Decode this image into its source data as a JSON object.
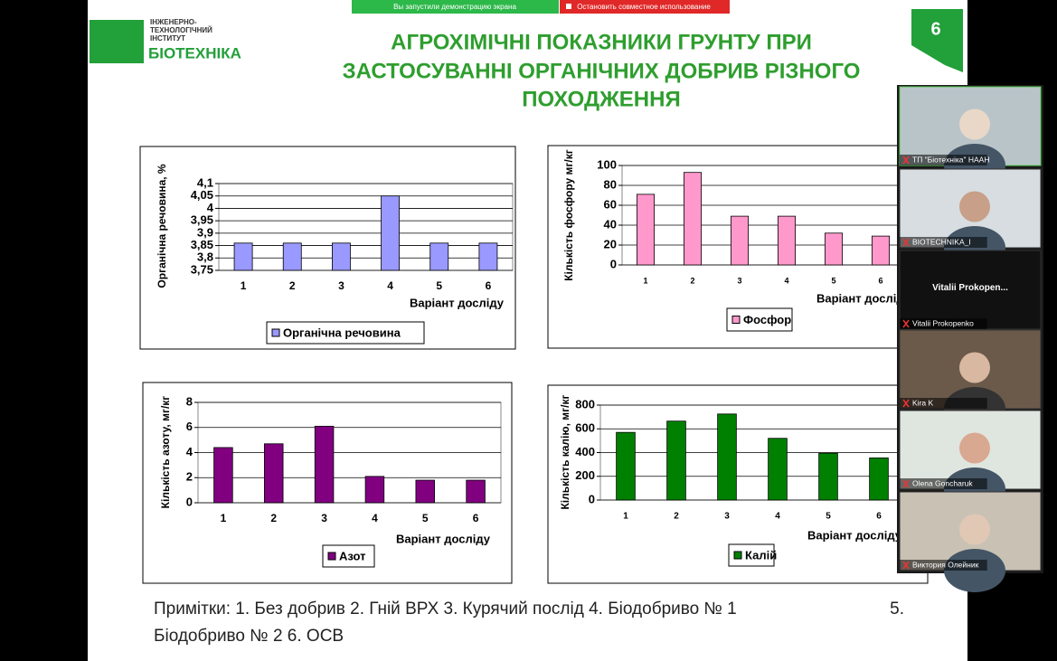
{
  "zoom_bar": {
    "sharing": "Вы запустили демонстрацию экрана",
    "stop": "Остановить совместное использование"
  },
  "logo": {
    "lines": [
      "ІНЖЕНЕРНО-",
      "ТЕХНОЛОГІЧНИЙ",
      "ІНСТИТУТ"
    ],
    "brand": "БІОТЕХНІКА"
  },
  "slide_number": "6",
  "title_lines": [
    "АГРОХІМІЧНІ ПОКАЗНИКИ ГРУНТУ ПРИ",
    "ЗАСТОСУВАННІ ОРГАНІЧНИХ ДОБРИВ РІЗНОГО",
    "ПОХОДЖЕННЯ"
  ],
  "chart_data": [
    {
      "type": "bar",
      "y_label": "Органічна речовина, %",
      "x_label": "Варіант досліду",
      "categories": [
        "1",
        "2",
        "3",
        "4",
        "5",
        "6"
      ],
      "series": [
        {
          "name": "Органічна речовина",
          "color": "#9999ff",
          "values": [
            3.86,
            3.86,
            3.86,
            4.05,
            3.86,
            3.86
          ]
        }
      ],
      "ylim": [
        3.75,
        4.1
      ],
      "yticks": [
        {
          "value": 3.75,
          "label": "3,75"
        },
        {
          "value": 3.8,
          "label": "3,8"
        },
        {
          "value": 3.85,
          "label": "3,85"
        },
        {
          "value": 3.9,
          "label": "3,9"
        },
        {
          "value": 3.95,
          "label": "3,95"
        },
        4,
        {
          "value": 4.05,
          "label": "4,05"
        },
        {
          "value": 4.1,
          "label": "4,1"
        }
      ],
      "grid": true
    },
    {
      "type": "bar",
      "y_label": "Кількість фосфору мг/кг",
      "x_label": "Варіант досліду",
      "categories": [
        "1",
        "2",
        "3",
        "4",
        "5",
        "6"
      ],
      "series": [
        {
          "name": "Фосфор",
          "color": "#ff99cc",
          "values": [
            71,
            93,
            49,
            49,
            32,
            29
          ]
        }
      ],
      "ylim": [
        0,
        100
      ],
      "yticks": [
        0,
        20,
        40,
        60,
        80,
        100
      ],
      "grid": true
    },
    {
      "type": "bar",
      "y_label": "Кількість азоту, мг/кг",
      "x_label": "Варіант досліду",
      "categories": [
        "1",
        "2",
        "3",
        "4",
        "5",
        "6"
      ],
      "series": [
        {
          "name": "Азот",
          "color": "#800080",
          "values": [
            4.4,
            4.7,
            6.1,
            2.1,
            1.8,
            1.8
          ]
        }
      ],
      "ylim": [
        0,
        8
      ],
      "yticks": [
        0,
        2,
        4,
        6,
        8
      ],
      "grid": true
    },
    {
      "type": "bar",
      "y_label": "Кількість калію, мг/кг",
      "x_label": "Варіант досліду",
      "categories": [
        "1",
        "2",
        "3",
        "4",
        "5",
        "6"
      ],
      "series": [
        {
          "name": "Калій",
          "color": "#008000",
          "values": [
            570,
            665,
            725,
            520,
            395,
            355
          ]
        }
      ],
      "ylim": [
        0,
        800
      ],
      "yticks": [
        0,
        200,
        400,
        600,
        800
      ],
      "grid": true
    }
  ],
  "notes": [
    "Примітки: 1. Без добрив  2. Гній ВРХ 3. Курячий послід  4. Біодобриво № 1",
    "5.",
    "Біодобриво № 2 6. ОСВ"
  ],
  "participants": [
    {
      "name": "ТП \"Біотехніка\" НААН"
    },
    {
      "name": "BIOTECHNIKA_I"
    },
    {
      "name": "Vitalii Prokopenko",
      "display": "Vitalii  Prokopen..."
    },
    {
      "name": "Kira K"
    },
    {
      "name": "Olena Goncharuk"
    },
    {
      "name": "Виктория Олейник"
    }
  ]
}
